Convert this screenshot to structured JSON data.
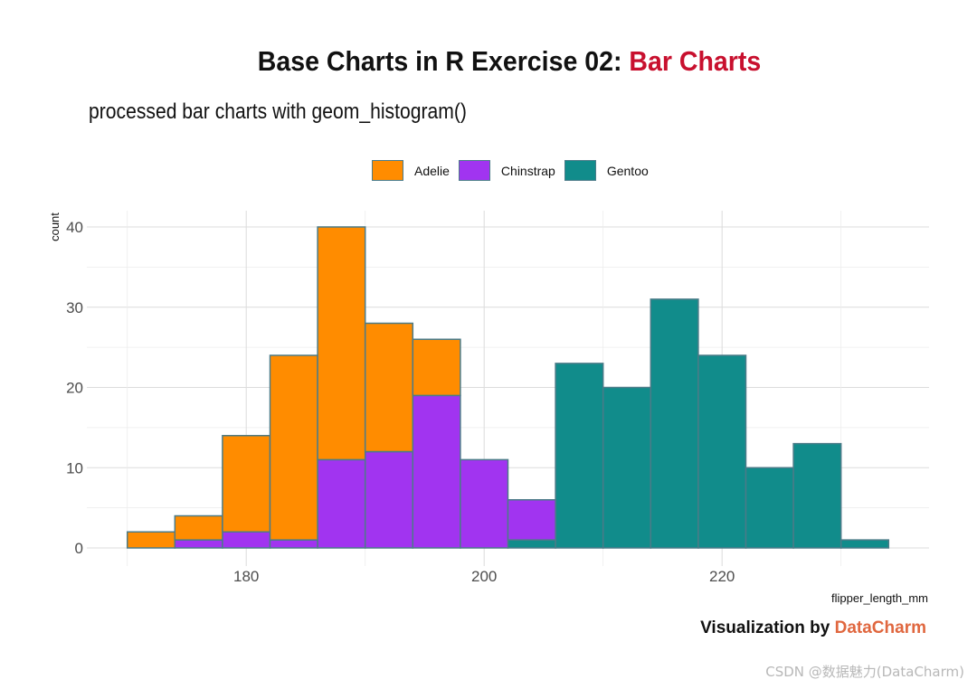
{
  "title": {
    "main": "Base Charts in R Exercise 02: ",
    "accent": "Bar Charts",
    "accent_color": "#c8102e"
  },
  "subtitle": "processed bar charts with geom_histogram()",
  "caption": {
    "prefix": "Visualization by ",
    "brand": "DataCharm",
    "brand_color": "#e0673f"
  },
  "watermark": "CSDN @数据魅力(DataCharm)",
  "chart_data": {
    "type": "bar",
    "subtype": "stacked-histogram",
    "xlabel": "flipper_length_mm",
    "ylabel": "count",
    "xlim": [
      170,
      234
    ],
    "ylim": [
      0,
      40
    ],
    "x_ticks": [
      180,
      200,
      220
    ],
    "y_ticks": [
      0,
      10,
      20,
      30,
      40
    ],
    "bin_width": 4,
    "grid": true,
    "legend_position": "top",
    "bar_outline_color": "#4b7b88",
    "bins": [
      {
        "x0": 170,
        "x1": 174
      },
      {
        "x0": 174,
        "x1": 178
      },
      {
        "x0": 178,
        "x1": 182
      },
      {
        "x0": 182,
        "x1": 186
      },
      {
        "x0": 186,
        "x1": 190
      },
      {
        "x0": 190,
        "x1": 194
      },
      {
        "x0": 194,
        "x1": 198
      },
      {
        "x0": 198,
        "x1": 202
      },
      {
        "x0": 202,
        "x1": 206
      },
      {
        "x0": 206,
        "x1": 210
      },
      {
        "x0": 210,
        "x1": 214
      },
      {
        "x0": 214,
        "x1": 218
      },
      {
        "x0": 218,
        "x1": 222
      },
      {
        "x0": 222,
        "x1": 226
      },
      {
        "x0": 226,
        "x1": 230
      },
      {
        "x0": 230,
        "x1": 234
      }
    ],
    "series": [
      {
        "name": "Gentoo",
        "color": "#118c8b",
        "values": [
          0,
          0,
          0,
          0,
          0,
          0,
          0,
          0,
          1,
          23,
          20,
          31,
          24,
          10,
          13,
          1
        ]
      },
      {
        "name": "Chinstrap",
        "color": "#a134f0",
        "values": [
          0,
          1,
          2,
          1,
          11,
          12,
          19,
          11,
          5,
          0,
          0,
          0,
          0,
          0,
          0,
          0
        ]
      },
      {
        "name": "Adelie",
        "color": "#ff8c00",
        "values": [
          2,
          3,
          12,
          23,
          29,
          16,
          7,
          0,
          0,
          0,
          0,
          0,
          0,
          0,
          0,
          0
        ]
      }
    ]
  }
}
